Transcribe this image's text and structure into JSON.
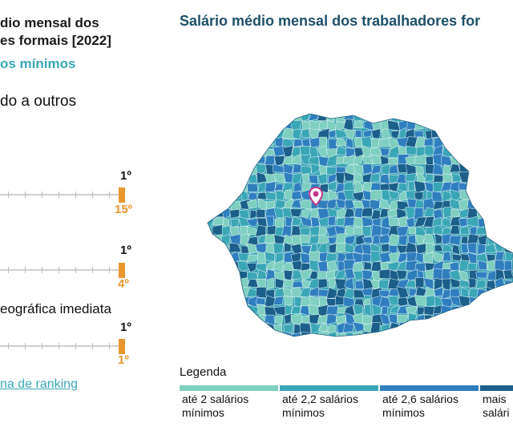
{
  "left_panel": {
    "title_line1": "dio mensal dos",
    "title_line2": "es formais [2022]",
    "subtitle": "os mínimos",
    "compare_label": "do a outros",
    "rankings": [
      {
        "top_label": "1º",
        "bottom_label": "15º"
      },
      {
        "top_label": "1º",
        "bottom_label": "4º"
      },
      {
        "top_label": "1º",
        "bottom_label": "1º"
      }
    ],
    "region_label": "eográfica imediata",
    "ranking_link": "na de ranking"
  },
  "map_panel": {
    "title": "Salário médio mensal dos trabalhadores for",
    "legend_title": "Legenda",
    "legend": [
      {
        "line1": "até 2 salários",
        "line2": "mínimos",
        "color": "#7fcfc0"
      },
      {
        "line1": "até 2,2 salários",
        "line2": "mínimos",
        "color": "#3aa7b7"
      },
      {
        "line1": "até 2,6 salários",
        "line2": "mínimos",
        "color": "#2f7fbf"
      },
      {
        "line1": "mais",
        "line2": "salári",
        "color": "#1b5f8a"
      }
    ],
    "marker_icon": "location-pin-icon",
    "marker_color": "#c2368a"
  }
}
